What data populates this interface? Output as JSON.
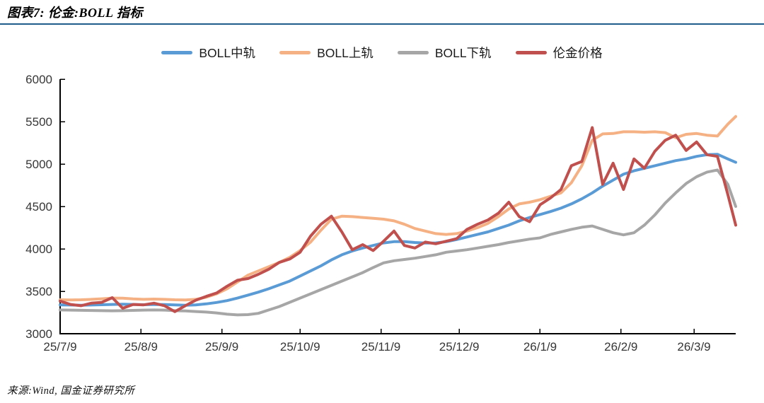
{
  "header": {
    "title": "图表7: 伦金:BOLL 指标"
  },
  "footer": {
    "source": "来源:Wind, 国金证券研究所"
  },
  "chart_data": {
    "type": "line",
    "title": "伦金 BOLL 指标",
    "legend_position": "top-center",
    "grid": false,
    "background": "#ffffff",
    "accent_rule_color": "#1F5C8B",
    "axis_color": "#000000",
    "tick_label_color": "#363636",
    "y_axis": {
      "min": 3000,
      "max": 6000,
      "step": 500,
      "ticks": [
        3000,
        3500,
        4000,
        4500,
        5000,
        5500,
        6000
      ]
    },
    "x_axis": {
      "tick_labels": [
        "25/7/9",
        "25/8/9",
        "25/9/9",
        "25/10/9",
        "25/11/9",
        "25/12/9",
        "26/1/9",
        "26/2/9",
        "26/3/9"
      ],
      "tick_days": [
        0,
        31,
        62,
        92,
        123,
        153,
        184,
        215,
        243
      ],
      "range_days": [
        0,
        259
      ]
    },
    "x_days": [
      0,
      4,
      8,
      12,
      16,
      20,
      24,
      28,
      32,
      36,
      40,
      44,
      48,
      52,
      56,
      60,
      64,
      68,
      72,
      76,
      80,
      84,
      88,
      92,
      96,
      100,
      104,
      108,
      112,
      116,
      120,
      124,
      128,
      132,
      136,
      140,
      144,
      148,
      152,
      156,
      160,
      164,
      168,
      172,
      176,
      180,
      184,
      188,
      192,
      196,
      200,
      204,
      208,
      212,
      216,
      220,
      224,
      228,
      232,
      236,
      240,
      244,
      248,
      252,
      256,
      259
    ],
    "series": [
      {
        "key": "boll-mid",
        "name": "BOLL中轨",
        "color": "#5B9BD5",
        "values": [
          3340,
          3338,
          3336,
          3338,
          3342,
          3345,
          3348,
          3345,
          3342,
          3345,
          3343,
          3340,
          3335,
          3340,
          3352,
          3368,
          3390,
          3420,
          3455,
          3490,
          3530,
          3575,
          3620,
          3680,
          3740,
          3800,
          3870,
          3930,
          3975,
          4010,
          4040,
          4070,
          4085,
          4085,
          4075,
          4068,
          4070,
          4085,
          4110,
          4140,
          4170,
          4200,
          4240,
          4280,
          4330,
          4370,
          4405,
          4440,
          4480,
          4530,
          4590,
          4660,
          4740,
          4810,
          4880,
          4920,
          4950,
          4980,
          5010,
          5040,
          5060,
          5090,
          5110,
          5115,
          5060,
          5020
        ]
      },
      {
        "key": "boll-upper",
        "name": "BOLL上轨",
        "color": "#F5B183",
        "values": [
          3400,
          3398,
          3400,
          3405,
          3412,
          3420,
          3418,
          3410,
          3405,
          3408,
          3405,
          3400,
          3398,
          3405,
          3430,
          3470,
          3530,
          3610,
          3690,
          3740,
          3790,
          3840,
          3900,
          3980,
          4080,
          4220,
          4350,
          4385,
          4380,
          4370,
          4360,
          4350,
          4330,
          4290,
          4240,
          4210,
          4180,
          4170,
          4180,
          4210,
          4250,
          4300,
          4380,
          4470,
          4530,
          4550,
          4580,
          4620,
          4660,
          4780,
          4980,
          5280,
          5355,
          5360,
          5380,
          5380,
          5375,
          5380,
          5370,
          5310,
          5350,
          5360,
          5340,
          5330,
          5470,
          5560
        ]
      },
      {
        "key": "boll-lower",
        "name": "BOLL下轨",
        "color": "#A6A6A6",
        "values": [
          3280,
          3278,
          3276,
          3274,
          3272,
          3270,
          3272,
          3275,
          3278,
          3280,
          3278,
          3272,
          3268,
          3262,
          3255,
          3245,
          3230,
          3222,
          3225,
          3240,
          3280,
          3320,
          3370,
          3420,
          3470,
          3520,
          3570,
          3620,
          3670,
          3720,
          3780,
          3835,
          3860,
          3875,
          3890,
          3910,
          3930,
          3960,
          3975,
          3990,
          4010,
          4030,
          4050,
          4075,
          4095,
          4115,
          4130,
          4170,
          4200,
          4230,
          4255,
          4270,
          4230,
          4190,
          4165,
          4190,
          4280,
          4400,
          4540,
          4660,
          4770,
          4850,
          4905,
          4930,
          4760,
          4500
        ]
      },
      {
        "key": "price",
        "name": "伦金价格",
        "color": "#C0504D",
        "values": [
          3385,
          3345,
          3330,
          3360,
          3370,
          3425,
          3300,
          3345,
          3340,
          3360,
          3330,
          3260,
          3330,
          3395,
          3440,
          3480,
          3560,
          3630,
          3650,
          3700,
          3760,
          3840,
          3880,
          3960,
          4150,
          4290,
          4385,
          4200,
          3990,
          4050,
          3980,
          4090,
          4210,
          4040,
          4010,
          4080,
          4060,
          4090,
          4120,
          4230,
          4290,
          4340,
          4420,
          4550,
          4380,
          4320,
          4520,
          4600,
          4700,
          4980,
          5030,
          5430,
          4760,
          5010,
          4700,
          5060,
          4950,
          5150,
          5280,
          5340,
          5160,
          5260,
          5110,
          5090,
          4640,
          4280
        ]
      }
    ]
  }
}
